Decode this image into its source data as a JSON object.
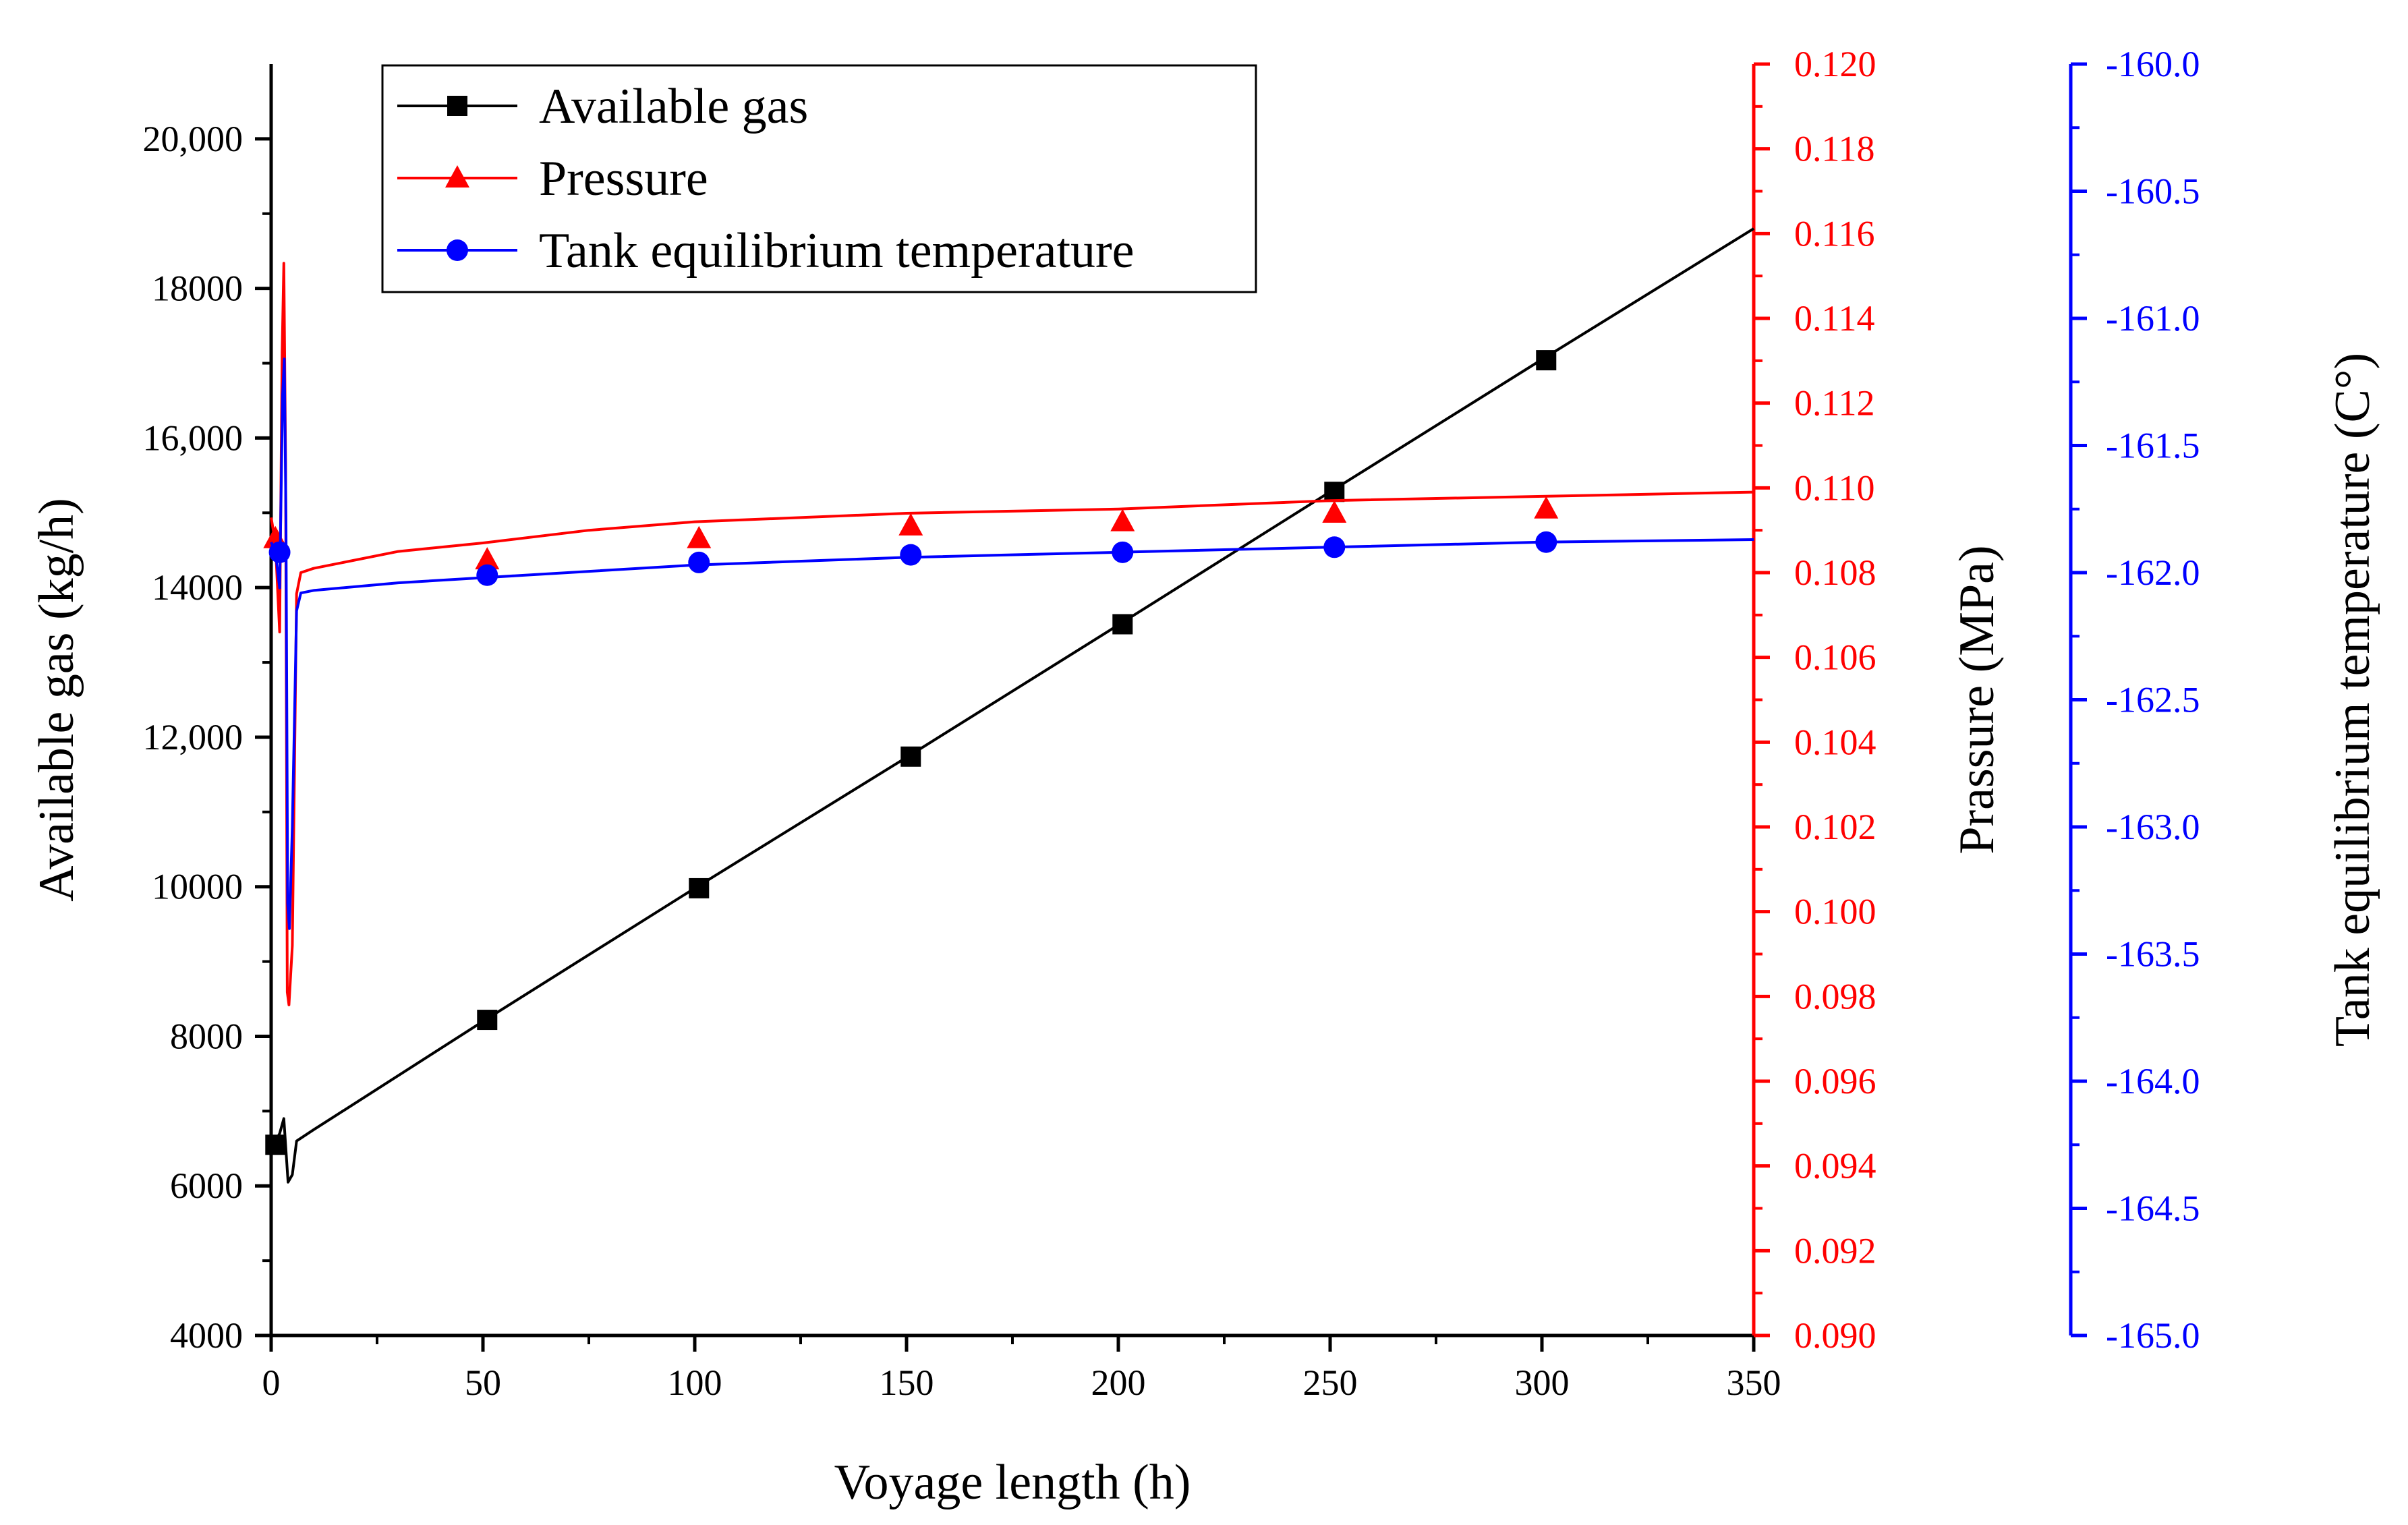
{
  "chart_data": {
    "type": "line",
    "x_axis": {
      "label": "Voyage length (h)",
      "range": [
        0,
        350
      ],
      "ticks": [
        0,
        50,
        100,
        150,
        200,
        250,
        300,
        350
      ],
      "tick_labels": [
        "0",
        "50",
        "100",
        "150",
        "200",
        "250",
        "300",
        "350"
      ]
    },
    "y_axes": [
      {
        "id": "gas",
        "label": "Available gas (kg/h)",
        "color": "#000000",
        "range": [
          4000,
          21000
        ],
        "ticks": [
          4000,
          6000,
          8000,
          10000,
          12000,
          14000,
          16000,
          18000,
          20000
        ],
        "tick_labels": [
          "4000",
          "6000",
          "8000",
          "10000",
          "12,000",
          "14000",
          "16,000",
          "18000",
          "20,000"
        ]
      },
      {
        "id": "pressure",
        "label": "Prassure (MPa)",
        "color": "#ff0000",
        "range": [
          0.09,
          0.12
        ],
        "ticks": [
          0.09,
          0.092,
          0.094,
          0.096,
          0.098,
          0.1,
          0.102,
          0.104,
          0.106,
          0.108,
          0.11,
          0.112,
          0.114,
          0.116,
          0.118,
          0.12
        ],
        "tick_labels": [
          "0.090",
          "0.092",
          "0.094",
          "0.096",
          "0.098",
          "0.100",
          "0.102",
          "0.104",
          "0.106",
          "0.108",
          "0.110",
          "0.112",
          "0.114",
          "0.116",
          "0.118",
          "0.120"
        ]
      },
      {
        "id": "temperature",
        "label": "Tank equilibrium temperature (C°)",
        "color": "#0000ff",
        "range": [
          -165.0,
          -160.0
        ],
        "ticks": [
          -165.0,
          -164.5,
          -164.0,
          -163.5,
          -163.0,
          -162.5,
          -162.0,
          -161.5,
          -161.0,
          -160.5,
          -160.0
        ],
        "tick_labels": [
          "-165.0",
          "-164.5",
          "-164.0",
          "-163.5",
          "-163.0",
          "-162.5",
          "-162.0",
          "-161.5",
          "-161.0",
          "-160.5",
          "-160.0"
        ]
      }
    ],
    "series": [
      {
        "name": "Available gas",
        "axis": "gas",
        "color": "#000000",
        "marker": "square",
        "x": [
          0,
          1,
          2,
          3,
          4,
          5,
          6,
          10,
          50,
          100,
          150,
          200,
          250,
          300,
          350
        ],
        "values": [
          6550,
          6600,
          6700,
          6900,
          6050,
          6150,
          6600,
          6750,
          8200,
          9980,
          11730,
          13500,
          15280,
          17050,
          18800
        ],
        "marker_x": [
          1,
          51,
          101,
          151,
          201,
          251,
          301
        ],
        "marker_values": [
          6550,
          8220,
          9980,
          11740,
          13510,
          15280,
          17040
        ]
      },
      {
        "name": "Pressure",
        "axis": "pressure",
        "color": "#ff0000",
        "marker": "triangle",
        "x": [
          0,
          1,
          2,
          2.6,
          3,
          3.4,
          3.8,
          4.2,
          5,
          6,
          7,
          10,
          30,
          50,
          75,
          100,
          150,
          200,
          250,
          300,
          350
        ],
        "values": [
          0.1093,
          0.1087,
          0.1066,
          0.1132,
          0.1153,
          0.1106,
          0.0981,
          0.0978,
          0.0992,
          0.1075,
          0.108,
          0.1081,
          0.1085,
          0.1087,
          0.109,
          0.1092,
          0.1094,
          0.1095,
          0.1097,
          0.1098,
          0.1099
        ],
        "marker_x": [
          1,
          51,
          101,
          151,
          201,
          251,
          301
        ],
        "marker_values": [
          0.1088,
          0.1083,
          0.1088,
          0.1091,
          0.1092,
          0.1094,
          0.1095
        ]
      },
      {
        "name": "Tank equilibrium temperature",
        "axis": "temperature",
        "color": "#0000ff",
        "marker": "circle",
        "x": [
          0,
          1,
          2,
          2.7,
          3.1,
          3.5,
          3.9,
          4.3,
          5,
          6,
          7,
          10,
          30,
          50,
          100,
          150,
          200,
          250,
          300,
          350
        ],
        "values": [
          -161.88,
          -161.92,
          -162.06,
          -161.3,
          -161.16,
          -161.8,
          -163.3,
          -163.4,
          -163.0,
          -162.15,
          -162.08,
          -162.07,
          -162.04,
          -162.02,
          -161.97,
          -161.94,
          -161.92,
          -161.9,
          -161.88,
          -161.87
        ],
        "marker_x": [
          2,
          51,
          101,
          151,
          201,
          251,
          301
        ],
        "marker_values": [
          -161.92,
          -162.01,
          -161.96,
          -161.93,
          -161.92,
          -161.9,
          -161.88
        ]
      }
    ],
    "legend": {
      "position": "top-left",
      "entries": [
        "Available gas",
        "Pressure",
        "Tank equilibrium temperature"
      ]
    }
  }
}
